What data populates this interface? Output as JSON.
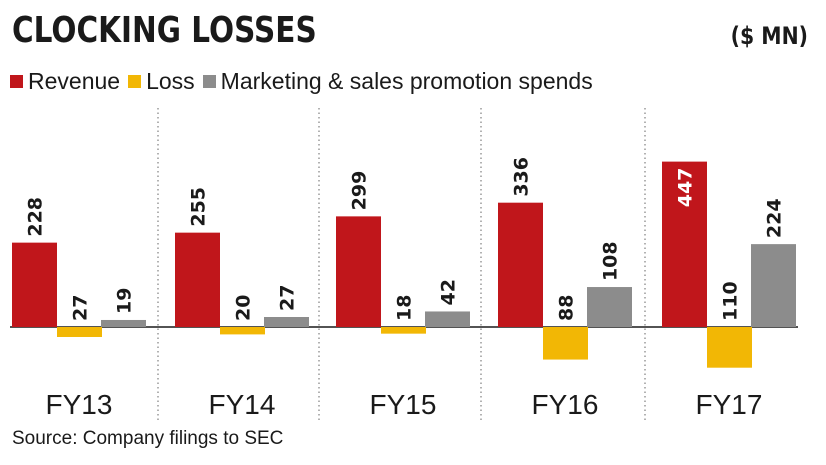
{
  "header": {
    "title": "CLOCKING LOSSES",
    "unit": "($ MN)"
  },
  "legend": [
    {
      "label": "Revenue",
      "color": "#c0161b"
    },
    {
      "label": "Loss",
      "color": "#f2b705"
    },
    {
      "label": "Marketing & sales promotion spends",
      "color": "#8c8c8c"
    }
  ],
  "source": "Source: Company filings to SEC",
  "chart_data": {
    "type": "bar",
    "title": "CLOCKING LOSSES",
    "categories": [
      "FY13",
      "FY14",
      "FY15",
      "FY16",
      "FY17"
    ],
    "series": [
      {
        "name": "Revenue",
        "values": [
          228,
          255,
          299,
          336,
          447
        ],
        "color": "#c0161b"
      },
      {
        "name": "Loss",
        "values": [
          -27,
          -20,
          -18,
          -88,
          -110
        ],
        "labels": [
          "27",
          "20",
          "18",
          "88",
          "110"
        ],
        "color": "#f2b705"
      },
      {
        "name": "Marketing & sales promotion spends",
        "values": [
          19,
          27,
          42,
          108,
          224
        ],
        "color": "#8c8c8c"
      }
    ],
    "ylim": [
      -110,
      447
    ],
    "grid": false,
    "legend_position": "top-left"
  }
}
